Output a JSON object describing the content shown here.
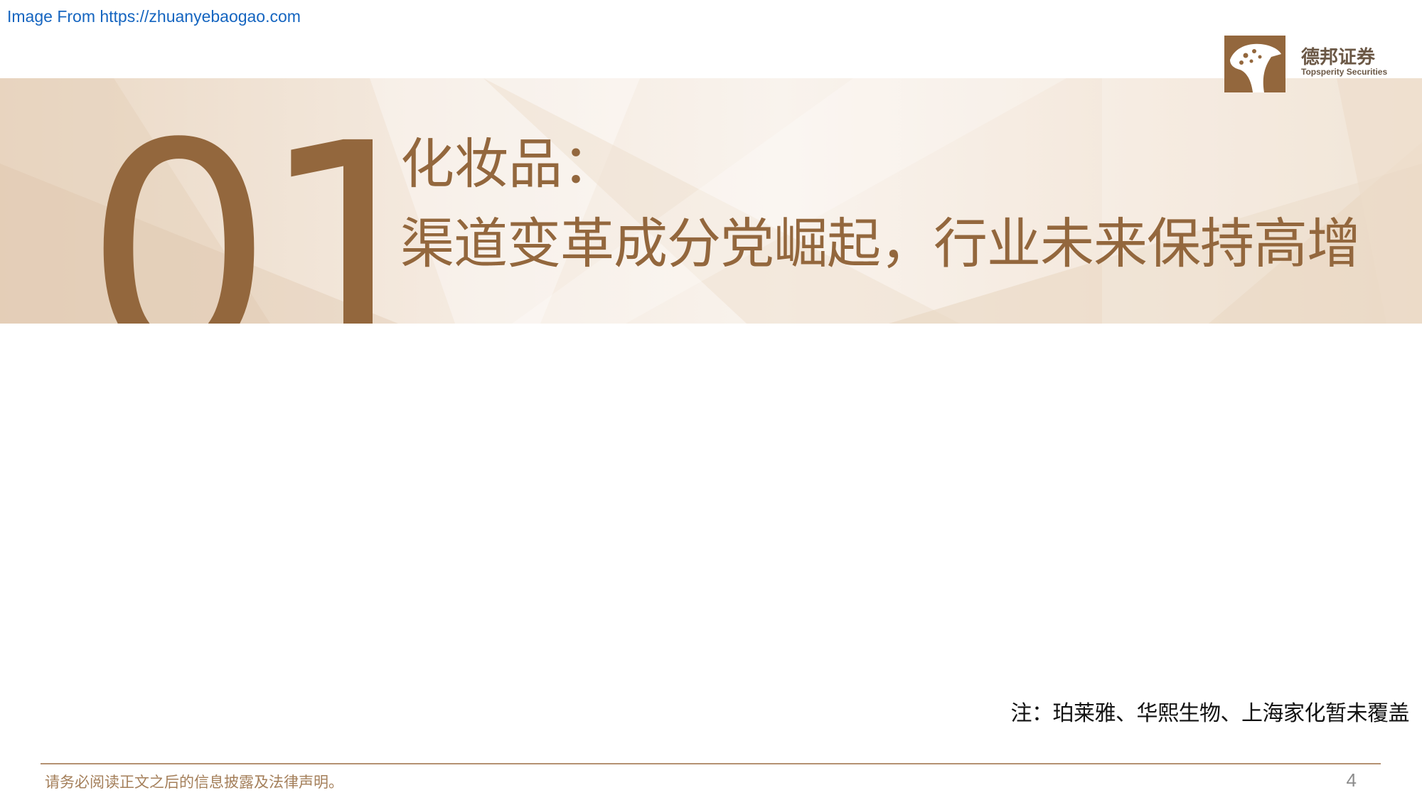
{
  "source": {
    "label": "Image From https://zhuanyebaogao.com"
  },
  "brand": {
    "name_cn": "德邦证券",
    "name_en": "Topsperity Securities",
    "mark_icon": "leopard-head-icon",
    "accent_color": "#93673d",
    "logo_color": "#93673d"
  },
  "section": {
    "number": "01",
    "title_line1": "化妆品：",
    "title_line2": "渠道变革成分党崛起，行业未来保持高增"
  },
  "note": {
    "text": "注：珀莱雅、华熙生物、上海家化暂未覆盖"
  },
  "footer": {
    "disclaimer": "请务必阅读正文之后的信息披露及法律声明。",
    "page_number": "4"
  }
}
